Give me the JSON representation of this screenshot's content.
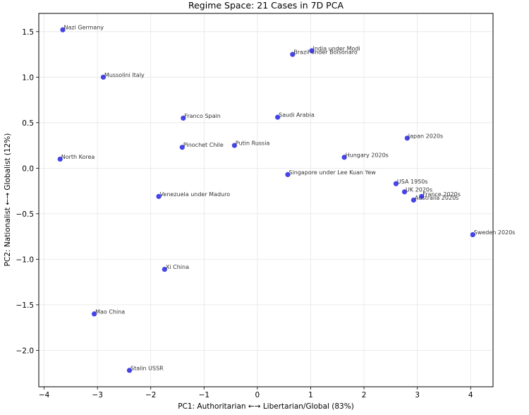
{
  "chart_data": {
    "type": "scatter",
    "title": "Regime Space: 21 Cases in 7D PCA",
    "xlabel": "PC1: Authoritarian ←→ Libertarian/Global (83%)",
    "ylabel": "PC2: Nationalist ←→ Globalist (12%)",
    "xlim": [
      -4.1,
      4.42
    ],
    "ylim": [
      -2.4,
      1.7
    ],
    "xticks": [
      -4,
      -3,
      -2,
      -1,
      0,
      1,
      2,
      3,
      4
    ],
    "xtick_labels": [
      "−4",
      "−3",
      "−2",
      "−1",
      "0",
      "1",
      "2",
      "3",
      "4"
    ],
    "yticks": [
      -2.0,
      -1.5,
      -1.0,
      -0.5,
      0.0,
      0.5,
      1.0,
      1.5
    ],
    "ytick_labels": [
      "−2.0",
      "−1.5",
      "−1.0",
      "−0.5",
      "0.0",
      "0.5",
      "1.0",
      "1.5"
    ],
    "grid": true,
    "color": "#2a2ae6",
    "points": [
      {
        "label": "Nazi Germany",
        "x": -3.65,
        "y": 1.52
      },
      {
        "label": "Mussolini Italy",
        "x": -2.89,
        "y": 1.0
      },
      {
        "label": "North Korea",
        "x": -3.7,
        "y": 0.1
      },
      {
        "label": "Franco Spain",
        "x": -1.39,
        "y": 0.55
      },
      {
        "label": "Pinochet Chile",
        "x": -1.41,
        "y": 0.23
      },
      {
        "label": "Putin Russia",
        "x": -0.43,
        "y": 0.25
      },
      {
        "label": "Saudi Arabia",
        "x": 0.38,
        "y": 0.56
      },
      {
        "label": "India under Modi",
        "x": 1.02,
        "y": 1.29
      },
      {
        "label": "Brazil under Bolsonaro",
        "x": 0.66,
        "y": 1.25
      },
      {
        "label": "Hungary 2020s",
        "x": 1.63,
        "y": 0.12
      },
      {
        "label": "Japan 2020s",
        "x": 2.81,
        "y": 0.33
      },
      {
        "label": "Singapore under Lee Kuan Yew",
        "x": 0.57,
        "y": -0.07
      },
      {
        "label": "USA 1950s",
        "x": 2.6,
        "y": -0.17
      },
      {
        "label": "UK 2020s",
        "x": 2.76,
        "y": -0.26
      },
      {
        "label": "France 2020s",
        "x": 3.08,
        "y": -0.31
      },
      {
        "label": "Australia 2020s",
        "x": 2.93,
        "y": -0.35
      },
      {
        "label": "Sweden 2020s",
        "x": 4.04,
        "y": -0.73
      },
      {
        "label": "Venezuela under Maduro",
        "x": -1.85,
        "y": -0.31
      },
      {
        "label": "Xi China",
        "x": -1.74,
        "y": -1.11
      },
      {
        "label": "Mao China",
        "x": -3.06,
        "y": -1.6
      },
      {
        "label": "Stalin USSR",
        "x": -2.4,
        "y": -2.22
      }
    ]
  }
}
